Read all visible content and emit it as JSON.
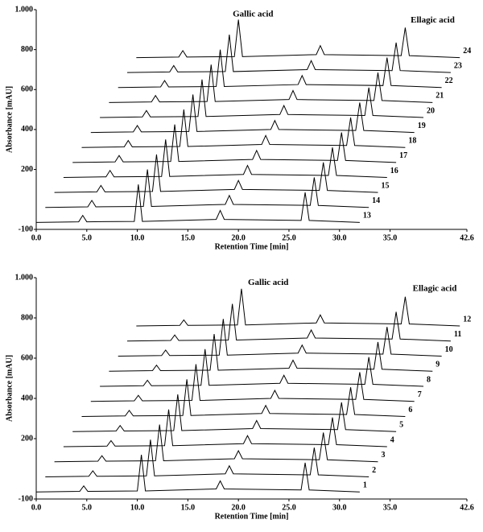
{
  "chart_data": [
    {
      "type": "line",
      "xlabel": "Retention Time [min]",
      "ylabel": "Absorbance [mAU]",
      "xlim": [
        0,
        42.6
      ],
      "ylim": [
        -100,
        1000
      ],
      "xticks": [
        {
          "value": 0,
          "label": "0.0"
        },
        {
          "value": 5,
          "label": "5.0"
        },
        {
          "value": 10,
          "label": "10.0"
        },
        {
          "value": 15,
          "label": "15.0"
        },
        {
          "value": 20,
          "label": "20.0"
        },
        {
          "value": 25,
          "label": "25.0"
        },
        {
          "value": 30,
          "label": "30.0"
        },
        {
          "value": 35,
          "label": "35.0"
        },
        42.6
      ],
      "yticks": [
        -100,
        200,
        400,
        600,
        800,
        {
          "value": 1000,
          "label": "1.000"
        }
      ],
      "annotations": [
        {
          "text": "Gallic acid",
          "x": 19.2,
          "y": 975
        },
        {
          "text": "Ellagic acid",
          "x": 36.8,
          "y": 945
        }
      ],
      "series": [
        {
          "name": "13",
          "color": "#000000",
          "x": [
            0,
            4.2,
            4.6,
            5,
            9.7,
            10.1,
            10.5,
            17.8,
            18.2,
            18.6,
            26.2,
            26.6,
            27,
            32
          ],
          "values": [
            -65,
            -62,
            -30,
            -62,
            -60,
            125,
            -60,
            -50,
            -5,
            -50,
            -55,
            85,
            -55,
            -65
          ]
        },
        {
          "name": "14",
          "color": "#000000",
          "x": [
            0.9,
            5.1,
            5.5,
            5.9,
            10.6,
            11,
            11.4,
            18.7,
            19.1,
            19.5,
            27.1,
            27.5,
            27.9,
            32.9
          ],
          "values": [
            10,
            13,
            45,
            13,
            15,
            200,
            15,
            25,
            70,
            25,
            20,
            160,
            20,
            10
          ]
        },
        {
          "name": "15",
          "color": "#000000",
          "x": [
            1.8,
            6,
            6.4,
            6.8,
            11.5,
            11.9,
            12.3,
            19.6,
            20,
            20.4,
            28,
            28.4,
            28.8,
            33.8
          ],
          "values": [
            85,
            88,
            120,
            88,
            90,
            275,
            90,
            100,
            145,
            100,
            95,
            235,
            95,
            85
          ]
        },
        {
          "name": "16",
          "color": "#000000",
          "x": [
            2.7,
            6.9,
            7.3,
            7.7,
            12.4,
            12.8,
            13.2,
            20.5,
            20.9,
            21.3,
            28.9,
            29.3,
            29.7,
            34.7
          ],
          "values": [
            160,
            163,
            195,
            163,
            165,
            350,
            165,
            175,
            220,
            175,
            170,
            310,
            170,
            160
          ]
        },
        {
          "name": "17",
          "color": "#000000",
          "x": [
            3.6,
            7.8,
            8.2,
            8.6,
            13.3,
            13.7,
            14.1,
            21.4,
            21.8,
            22.2,
            29.8,
            30.2,
            30.6,
            35.6
          ],
          "values": [
            235,
            238,
            270,
            238,
            240,
            425,
            240,
            250,
            295,
            250,
            245,
            385,
            245,
            235
          ]
        },
        {
          "name": "18",
          "color": "#000000",
          "x": [
            4.5,
            8.7,
            9.1,
            9.5,
            14.2,
            14.6,
            15,
            22.3,
            22.7,
            23.1,
            30.7,
            31.1,
            31.5,
            36.5
          ],
          "values": [
            310,
            313,
            345,
            313,
            315,
            500,
            315,
            325,
            370,
            325,
            320,
            460,
            320,
            310
          ]
        },
        {
          "name": "19",
          "color": "#000000",
          "x": [
            5.4,
            9.6,
            10,
            10.4,
            15.1,
            15.5,
            15.9,
            23.2,
            23.6,
            24,
            31.6,
            32,
            32.4,
            37.4
          ],
          "values": [
            385,
            388,
            420,
            388,
            390,
            575,
            390,
            400,
            445,
            400,
            395,
            535,
            395,
            385
          ]
        },
        {
          "name": "20",
          "color": "#000000",
          "x": [
            6.3,
            10.5,
            10.9,
            11.3,
            16,
            16.4,
            16.8,
            24.1,
            24.5,
            24.9,
            32.5,
            32.9,
            33.3,
            38.3
          ],
          "values": [
            460,
            463,
            495,
            463,
            465,
            650,
            465,
            475,
            520,
            475,
            470,
            610,
            470,
            460
          ]
        },
        {
          "name": "21",
          "color": "#000000",
          "x": [
            7.2,
            11.4,
            11.8,
            12.2,
            16.9,
            17.3,
            17.7,
            25,
            25.4,
            25.8,
            33.4,
            33.8,
            34.2,
            39.2
          ],
          "values": [
            535,
            538,
            570,
            538,
            540,
            725,
            540,
            550,
            595,
            550,
            545,
            685,
            545,
            535
          ]
        },
        {
          "name": "22",
          "color": "#000000",
          "x": [
            8.1,
            12.3,
            12.7,
            13.1,
            17.8,
            18.2,
            18.6,
            25.9,
            26.3,
            26.7,
            34.3,
            34.7,
            35.1,
            40.1
          ],
          "values": [
            610,
            613,
            645,
            613,
            615,
            800,
            615,
            625,
            670,
            625,
            620,
            760,
            620,
            610
          ]
        },
        {
          "name": "23",
          "color": "#000000",
          "x": [
            9,
            13.2,
            13.6,
            14,
            18.7,
            19.1,
            19.5,
            26.8,
            27.2,
            27.6,
            35.2,
            35.6,
            36,
            41
          ],
          "values": [
            685,
            688,
            720,
            688,
            690,
            875,
            690,
            700,
            745,
            700,
            695,
            835,
            695,
            685
          ]
        },
        {
          "name": "24",
          "color": "#000000",
          "x": [
            9.9,
            14.1,
            14.5,
            14.9,
            19.6,
            20,
            20.4,
            27.7,
            28.1,
            28.5,
            36.1,
            36.5,
            36.9,
            41.9
          ],
          "values": [
            760,
            763,
            795,
            763,
            765,
            950,
            765,
            775,
            820,
            775,
            770,
            910,
            770,
            760
          ]
        }
      ]
    },
    {
      "type": "line",
      "xlabel": "Retention Time [min]",
      "ylabel": "Absorbance [mAU]",
      "xlim": [
        0,
        42.6
      ],
      "ylim": [
        -100,
        1000
      ],
      "xticks": [
        {
          "value": 0,
          "label": "0.0"
        },
        {
          "value": 5,
          "label": "5.0"
        },
        {
          "value": 10,
          "label": "10.0"
        },
        {
          "value": 15,
          "label": "15.0"
        },
        {
          "value": 20,
          "label": "20.0"
        },
        {
          "value": 25,
          "label": "25.0"
        },
        {
          "value": 30,
          "label": "30.0"
        },
        {
          "value": 35,
          "label": "35.0"
        },
        42.6
      ],
      "yticks": [
        -100,
        200,
        400,
        600,
        800,
        {
          "value": 1000,
          "label": "1.000"
        }
      ],
      "annotations": [
        {
          "text": "Gallic acid",
          "x": 20.7,
          "y": 975
        },
        {
          "text": "Ellagic acid",
          "x": 37,
          "y": 945
        }
      ],
      "series": [
        {
          "name": "1",
          "color": "#000000",
          "x": [
            0,
            4.3,
            4.7,
            5.1,
            10,
            10.4,
            10.8,
            17.8,
            18.2,
            18.6,
            26.2,
            26.6,
            27,
            32
          ],
          "values": [
            -65,
            -62,
            -35,
            -62,
            -60,
            120,
            -60,
            -50,
            -10,
            -50,
            -55,
            80,
            -55,
            -65
          ]
        },
        {
          "name": "2",
          "color": "#000000",
          "x": [
            0.9,
            5.2,
            5.6,
            6,
            10.9,
            11.3,
            11.7,
            18.7,
            19.1,
            19.5,
            27.1,
            27.5,
            27.9,
            32.9
          ],
          "values": [
            10,
            13,
            40,
            13,
            15,
            195,
            15,
            25,
            65,
            25,
            20,
            155,
            20,
            10
          ]
        },
        {
          "name": "3",
          "color": "#000000",
          "x": [
            1.8,
            6.1,
            6.5,
            6.9,
            11.8,
            12.2,
            12.6,
            19.6,
            20,
            20.4,
            28,
            28.4,
            28.8,
            33.8
          ],
          "values": [
            85,
            88,
            115,
            88,
            90,
            270,
            90,
            100,
            140,
            100,
            95,
            230,
            95,
            85
          ]
        },
        {
          "name": "4",
          "color": "#000000",
          "x": [
            2.7,
            7,
            7.4,
            7.8,
            12.7,
            13.1,
            13.5,
            20.5,
            20.9,
            21.3,
            28.9,
            29.3,
            29.7,
            34.7
          ],
          "values": [
            160,
            163,
            190,
            163,
            165,
            345,
            165,
            175,
            215,
            175,
            170,
            305,
            170,
            160
          ]
        },
        {
          "name": "5",
          "color": "#000000",
          "x": [
            3.6,
            7.9,
            8.3,
            8.7,
            13.6,
            14,
            14.4,
            21.4,
            21.8,
            22.2,
            29.8,
            30.2,
            30.6,
            35.6
          ],
          "values": [
            235,
            238,
            265,
            238,
            240,
            420,
            240,
            250,
            290,
            250,
            245,
            380,
            245,
            235
          ]
        },
        {
          "name": "6",
          "color": "#000000",
          "x": [
            4.5,
            8.8,
            9.2,
            9.6,
            14.5,
            14.9,
            15.3,
            22.3,
            22.7,
            23.1,
            30.7,
            31.1,
            31.5,
            36.5
          ],
          "values": [
            310,
            313,
            340,
            313,
            315,
            495,
            315,
            325,
            365,
            325,
            320,
            455,
            320,
            310
          ]
        },
        {
          "name": "7",
          "color": "#000000",
          "x": [
            5.4,
            9.7,
            10.1,
            10.5,
            15.4,
            15.8,
            16.2,
            23.2,
            23.6,
            24,
            31.6,
            32,
            32.4,
            37.4
          ],
          "values": [
            385,
            388,
            415,
            388,
            390,
            570,
            390,
            400,
            440,
            400,
            395,
            530,
            395,
            385
          ]
        },
        {
          "name": "8",
          "color": "#000000",
          "x": [
            6.3,
            10.6,
            11,
            11.4,
            16.3,
            16.7,
            17.1,
            24.1,
            24.5,
            24.9,
            32.5,
            32.9,
            33.3,
            38.3
          ],
          "values": [
            460,
            463,
            490,
            463,
            465,
            645,
            465,
            475,
            515,
            475,
            470,
            605,
            470,
            460
          ]
        },
        {
          "name": "9",
          "color": "#000000",
          "x": [
            7.2,
            11.5,
            11.9,
            12.3,
            17.2,
            17.6,
            18,
            25,
            25.4,
            25.8,
            33.4,
            33.8,
            34.2,
            39.2
          ],
          "values": [
            535,
            538,
            565,
            538,
            540,
            720,
            540,
            550,
            590,
            550,
            545,
            680,
            545,
            535
          ]
        },
        {
          "name": "10",
          "color": "#000000",
          "x": [
            8.1,
            12.4,
            12.8,
            13.2,
            18.1,
            18.5,
            18.9,
            25.9,
            26.3,
            26.7,
            34.3,
            34.7,
            35.1,
            40.1
          ],
          "values": [
            610,
            613,
            640,
            613,
            615,
            795,
            615,
            625,
            665,
            625,
            620,
            755,
            620,
            610
          ]
        },
        {
          "name": "11",
          "color": "#000000",
          "x": [
            9,
            13.3,
            13.7,
            14.1,
            19,
            19.4,
            19.8,
            26.8,
            27.2,
            27.6,
            35.2,
            35.6,
            36,
            41
          ],
          "values": [
            685,
            688,
            715,
            688,
            690,
            870,
            690,
            700,
            740,
            700,
            695,
            830,
            695,
            685
          ]
        },
        {
          "name": "12",
          "color": "#000000",
          "x": [
            9.9,
            14.2,
            14.6,
            15,
            19.9,
            20.3,
            20.7,
            27.7,
            28.1,
            28.5,
            36.1,
            36.5,
            36.9,
            41.9
          ],
          "values": [
            760,
            763,
            790,
            763,
            765,
            945,
            765,
            775,
            815,
            775,
            770,
            905,
            770,
            760
          ]
        }
      ]
    }
  ]
}
